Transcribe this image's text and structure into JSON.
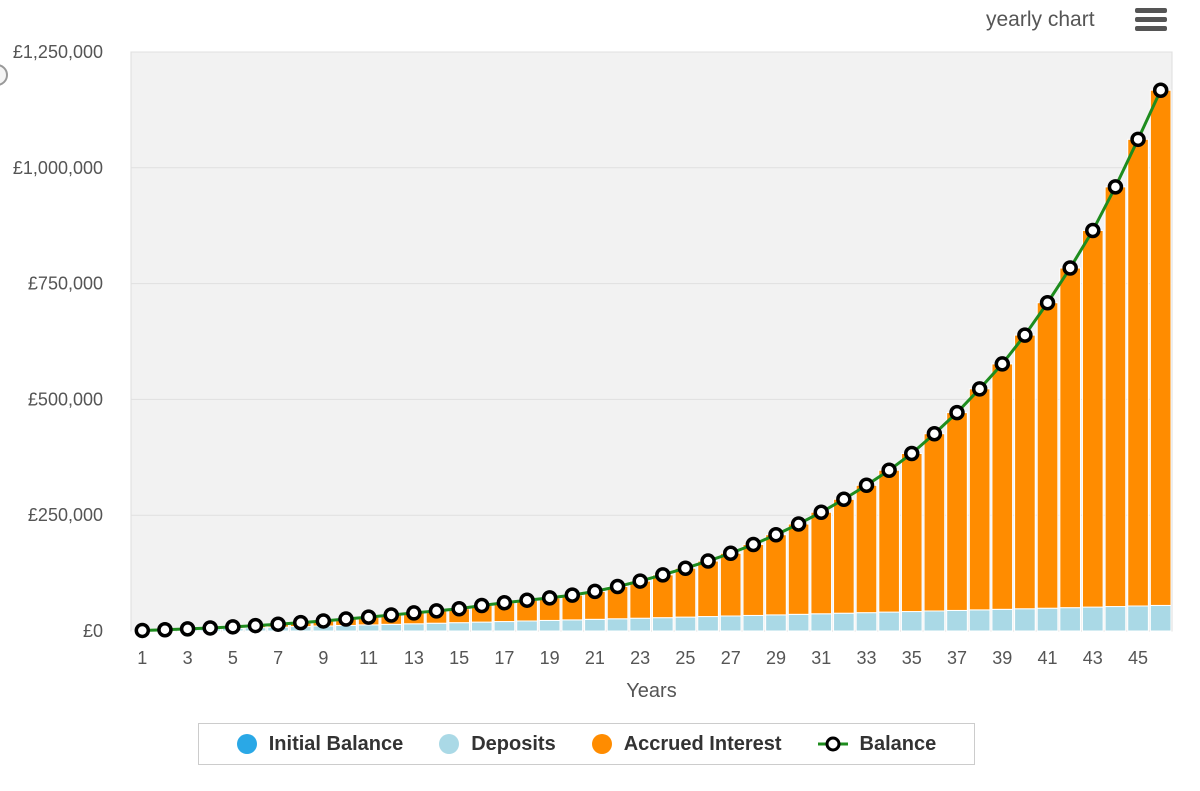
{
  "header": {
    "title": "yearly chart",
    "menu_icon": "hamburger-menu-icon"
  },
  "colors": {
    "initial_balance": "#2aa8e6",
    "deposits": "#aad9e6",
    "accrued_interest": "#ff8c00",
    "balance_line": "#1e8c1e",
    "plot_background": "#f2f2f2",
    "gridline": "#e0e0e0"
  },
  "chart_data": {
    "type": "bar",
    "stacked": true,
    "xlabel": "Years",
    "ylabel": "",
    "ylim": [
      0,
      1250000
    ],
    "yticks": [
      0,
      250000,
      500000,
      750000,
      1000000,
      1250000
    ],
    "ytick_labels": [
      "£0",
      "£250,000",
      "£500,000",
      "£750,000",
      "£1,000,000",
      "£1,250,000"
    ],
    "xtick_labels": [
      "1",
      "3",
      "5",
      "7",
      "9",
      "11",
      "13",
      "15",
      "17",
      "19",
      "21",
      "23",
      "25",
      "27",
      "29",
      "31",
      "33",
      "35",
      "37",
      "39",
      "41",
      "43",
      "45"
    ],
    "categories": [
      1,
      2,
      3,
      4,
      5,
      6,
      7,
      8,
      9,
      10,
      11,
      12,
      13,
      14,
      15,
      16,
      17,
      18,
      19,
      20,
      21,
      22,
      23,
      24,
      25,
      26,
      27,
      28,
      29,
      30,
      31,
      32,
      33,
      34,
      35,
      36,
      37,
      38,
      39,
      40,
      41,
      42,
      43,
      44,
      45,
      46
    ],
    "grid": true,
    "legend_position": "bottom-center",
    "series": [
      {
        "name": "Initial Balance",
        "type": "bar",
        "values": [
          0,
          0,
          0,
          0,
          0,
          0,
          0,
          0,
          0,
          0,
          0,
          0,
          0,
          0,
          0,
          0,
          0,
          0,
          0,
          0,
          0,
          0,
          0,
          0,
          0,
          0,
          0,
          0,
          0,
          0,
          0,
          0,
          0,
          0,
          0,
          0,
          0,
          0,
          0,
          0,
          0,
          0,
          0,
          0,
          0,
          0
        ]
      },
      {
        "name": "Deposits",
        "type": "bar",
        "values": [
          1200,
          2400,
          3600,
          4800,
          6000,
          7200,
          8400,
          9600,
          10800,
          12000,
          13200,
          14400,
          15600,
          16800,
          18000,
          19200,
          20400,
          21600,
          22800,
          24000,
          25200,
          26400,
          27600,
          28800,
          30000,
          31200,
          32400,
          33600,
          34800,
          36000,
          37200,
          38400,
          39600,
          40800,
          42000,
          43200,
          44400,
          45600,
          46800,
          48000,
          49200,
          50400,
          51600,
          52800,
          54000,
          55200
        ]
      },
      {
        "name": "Accrued Interest",
        "type": "bar",
        "values": [
          0,
          300,
          900,
          1800,
          3000,
          4500,
          6300,
          8400,
          10900,
          13800,
          16800,
          20100,
          23400,
          26700,
          30000,
          35800,
          40600,
          44900,
          48700,
          53400,
          60300,
          69600,
          80200,
          92400,
          105500,
          119800,
          135400,
          153200,
          173000,
          195000,
          219200,
          246000,
          275000,
          306300,
          341200,
          382700,
          427100,
          477200,
          529800,
          590800,
          659500,
          733200,
          813000,
          906000,
          1007500,
          1112300
        ]
      },
      {
        "name": "Balance",
        "type": "line",
        "values": [
          1200,
          2700,
          4500,
          6600,
          9000,
          11700,
          14700,
          18000,
          21700,
          25800,
          30000,
          34500,
          39000,
          43500,
          48000,
          55000,
          61000,
          66500,
          71500,
          77400,
          85500,
          96000,
          107800,
          121200,
          135500,
          151000,
          167800,
          186800,
          207800,
          231000,
          256400,
          284400,
          314600,
          347100,
          383200,
          425900,
          471500,
          522800,
          576600,
          638800,
          708700,
          783600,
          864600,
          958800,
          1061500,
          1167500
        ]
      }
    ]
  },
  "legend": [
    {
      "label": "Initial Balance",
      "icon": "circle"
    },
    {
      "label": "Deposits",
      "icon": "circle"
    },
    {
      "label": "Accrued Interest",
      "icon": "circle"
    },
    {
      "label": "Balance",
      "icon": "line-with-open-circle"
    }
  ]
}
